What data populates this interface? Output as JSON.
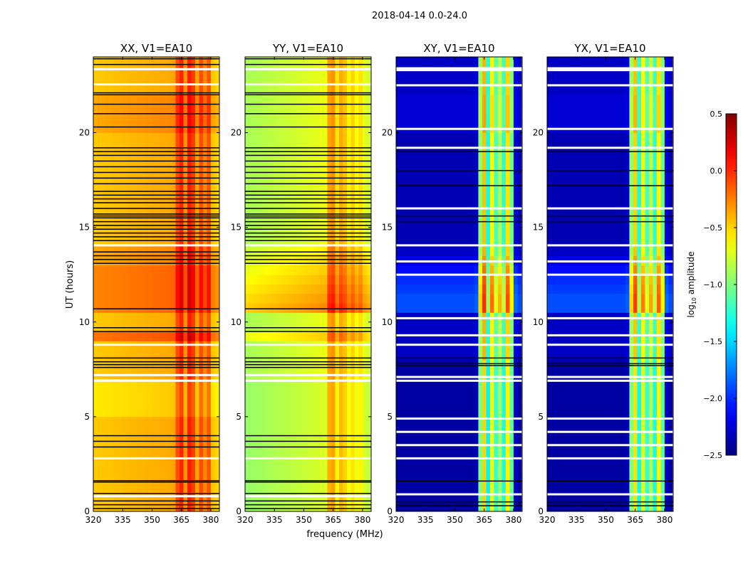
{
  "chart_data": {
    "type": "heatmap",
    "title": "2018-04-14 0.0-24.0",
    "xlabel": "frequency (MHz)",
    "ylabel": "UT (hours)",
    "xlim": [
      320,
      384.4
    ],
    "ylim": [
      0,
      24
    ],
    "xticks": [
      320,
      335,
      350,
      365,
      380
    ],
    "yticks": [
      0,
      5,
      10,
      15,
      20
    ],
    "freq_bins_mhz": {
      "start": 320,
      "width": 2,
      "count": 32
    },
    "time_bins_hours": {
      "start": 0,
      "width": 0.5,
      "count": 48
    },
    "colorbar": {
      "label_prefix": "log",
      "label_sub": "10",
      "label_suffix": " amplitude",
      "colormap": "jet",
      "vmin": -2.5,
      "vmax": 0.5,
      "ticks": [
        -2.5,
        -2.0,
        -1.5,
        -1.0,
        -0.5,
        0.0,
        0.5
      ],
      "tick_labels": [
        "−2.5",
        "−2.0",
        "−1.5",
        "−1.0",
        "−0.5",
        "0.0",
        "0.5"
      ]
    },
    "panels": [
      {
        "title": "XX, V1=EA10",
        "spectral_profile": [
          -0.47,
          -0.46,
          -0.46,
          -0.45,
          -0.45,
          -0.44,
          -0.44,
          -0.43,
          -0.43,
          -0.42,
          -0.42,
          -0.41,
          -0.41,
          -0.4,
          -0.4,
          -0.39,
          -0.39,
          -0.38,
          -0.38,
          -0.37,
          -0.36,
          -0.1,
          0.02,
          -0.3,
          0.05,
          -0.05,
          -0.35,
          -0.1,
          -0.28,
          -0.12,
          -0.45,
          -0.5
        ],
        "time_modulation": [
          0,
          0,
          0,
          0,
          0,
          0,
          0,
          0,
          0,
          0,
          -0.1,
          -0.1,
          -0.1,
          -0.1,
          0,
          0,
          0,
          0,
          0.25,
          0,
          0,
          0.2,
          0.2,
          0.2,
          0.2,
          0.2,
          0.1,
          0.1,
          0,
          0,
          0,
          0,
          0,
          0,
          0,
          0,
          0,
          0,
          0,
          0,
          0.1,
          0.1,
          0.1,
          0.1,
          0,
          0,
          0,
          0
        ],
        "flagged_black_hours": [
          0.15,
          0.35,
          0.55,
          0.95,
          1.55,
          1.62,
          3.4,
          3.7,
          4.0,
          7.6,
          7.75,
          7.9,
          8.1,
          9.5,
          9.7,
          10.7,
          13.1,
          13.3,
          13.5,
          13.7,
          14.3,
          14.5,
          14.7,
          14.9,
          15.1,
          15.3,
          15.5,
          15.6,
          15.7,
          16.0,
          16.3,
          16.5,
          16.7,
          16.9,
          17.3,
          17.6,
          17.9,
          18.2,
          18.5,
          18.8,
          19.0,
          19.2,
          20.3,
          21.0,
          21.5,
          22.0,
          22.1,
          23.6,
          23.9
        ],
        "missing_white_hours": [
          0.8,
          2.8,
          6.9,
          7.2,
          8.8,
          14.05,
          22.55,
          23.35
        ]
      },
      {
        "title": "YY, V1=EA10",
        "spectral_profile": [
          -0.88,
          -0.87,
          -0.86,
          -0.85,
          -0.84,
          -0.83,
          -0.82,
          -0.81,
          -0.8,
          -0.79,
          -0.78,
          -0.77,
          -0.76,
          -0.75,
          -0.74,
          -0.73,
          -0.72,
          -0.71,
          -0.7,
          -0.69,
          -0.68,
          -0.35,
          -0.3,
          -0.55,
          -0.38,
          -0.45,
          -0.6,
          -0.5,
          -0.62,
          -0.55,
          -0.7,
          -0.75
        ],
        "time_modulation": [
          -0.05,
          -0.05,
          -0.05,
          -0.05,
          -0.05,
          -0.05,
          -0.05,
          -0.05,
          -0.05,
          -0.05,
          -0.05,
          -0.05,
          -0.05,
          -0.05,
          0,
          0,
          0,
          0,
          0.2,
          0,
          0,
          0.4,
          0.35,
          0.3,
          0.25,
          0.2,
          0.15,
          0.1,
          0,
          0,
          0,
          0,
          0,
          0,
          0,
          0,
          0,
          0,
          0,
          0,
          0,
          0,
          0,
          0,
          0,
          0,
          0,
          0
        ],
        "flagged_black_hours": [
          0.15,
          0.35,
          0.55,
          0.95,
          1.55,
          1.62,
          3.4,
          3.7,
          4.0,
          7.6,
          7.75,
          7.9,
          8.1,
          9.5,
          9.7,
          10.7,
          13.1,
          13.3,
          13.5,
          13.7,
          14.3,
          14.5,
          14.7,
          14.9,
          15.1,
          15.3,
          15.5,
          15.6,
          15.7,
          16.0,
          16.3,
          16.5,
          16.7,
          16.9,
          17.3,
          17.6,
          17.9,
          18.2,
          18.5,
          18.8,
          19.0,
          19.2,
          20.3,
          21.0,
          21.5,
          22.0,
          22.1,
          23.6,
          23.9
        ],
        "missing_white_hours": [
          0.8,
          2.8,
          6.9,
          7.2,
          8.8,
          14.05,
          22.55,
          23.35
        ]
      },
      {
        "title": "XY, V1=EA10",
        "spectral_profile": [
          -2.4,
          -2.4,
          -2.4,
          -2.4,
          -2.4,
          -2.4,
          -2.4,
          -2.4,
          -2.4,
          -2.4,
          -2.4,
          -2.4,
          -2.4,
          -2.4,
          -2.4,
          -2.4,
          -2.4,
          -2.4,
          -2.4,
          -2.4,
          -2.35,
          -1.0,
          -0.5,
          -1.4,
          -0.7,
          -1.2,
          -0.9,
          -1.3,
          -0.6,
          -1.1,
          -2.3,
          -2.4
        ],
        "time_modulation": [
          0,
          0,
          0,
          0,
          0,
          0,
          0,
          0,
          0,
          0,
          0,
          0,
          0,
          0,
          0,
          0,
          0.1,
          0.1,
          0.1,
          0.1,
          0.1,
          0.5,
          0.5,
          0.45,
          0.4,
          0.3,
          0.2,
          0.1,
          0.05,
          0.05,
          0.05,
          0.05,
          0.05,
          0.05,
          0.05,
          0.05,
          0.05,
          0.05,
          0.05,
          0.05,
          0.15,
          0.15,
          0.15,
          0.15,
          0.1,
          0.1,
          0.1,
          0.1
        ],
        "flagged_black_hours": [
          0.3,
          0.5,
          1.6,
          7.7,
          7.8,
          8.1,
          15.3,
          15.6,
          17.2,
          18.0,
          19.0
        ],
        "missing_white_hours": [
          0.9,
          2.8,
          3.5,
          4.2,
          4.9,
          6.9,
          7.1,
          8.8,
          9.3,
          10.2,
          12.5,
          13.2,
          14.05,
          16.0,
          19.2,
          20.2,
          22.5,
          23.3,
          23.4
        ]
      },
      {
        "title": "YX, V1=EA10",
        "spectral_profile": [
          -2.4,
          -2.4,
          -2.4,
          -2.4,
          -2.4,
          -2.4,
          -2.4,
          -2.4,
          -2.4,
          -2.4,
          -2.4,
          -2.4,
          -2.4,
          -2.4,
          -2.4,
          -2.4,
          -2.4,
          -2.4,
          -2.4,
          -2.4,
          -2.35,
          -1.0,
          -0.55,
          -1.35,
          -0.75,
          -1.2,
          -0.85,
          -1.3,
          -0.65,
          -1.1,
          -2.3,
          -2.4
        ],
        "time_modulation": [
          0,
          0,
          0,
          0,
          0,
          0,
          0,
          0,
          0,
          0,
          0,
          0,
          0,
          0,
          0,
          0,
          0.1,
          0.1,
          0.1,
          0.1,
          0.1,
          0.5,
          0.5,
          0.45,
          0.4,
          0.3,
          0.2,
          0.1,
          0.05,
          0.05,
          0.05,
          0.05,
          0.05,
          0.05,
          0.05,
          0.05,
          0.05,
          0.05,
          0.05,
          0.05,
          0.15,
          0.15,
          0.15,
          0.15,
          0.1,
          0.1,
          0.1,
          0.1
        ],
        "flagged_black_hours": [
          0.3,
          0.5,
          1.6,
          7.7,
          7.8,
          8.1,
          15.3,
          15.6,
          17.2,
          18.0,
          19.0
        ],
        "missing_white_hours": [
          0.9,
          2.8,
          3.5,
          4.2,
          4.9,
          6.9,
          7.1,
          8.8,
          9.3,
          10.2,
          12.5,
          13.2,
          14.05,
          16.0,
          19.2,
          20.2,
          22.5,
          23.3,
          23.4
        ]
      }
    ]
  }
}
